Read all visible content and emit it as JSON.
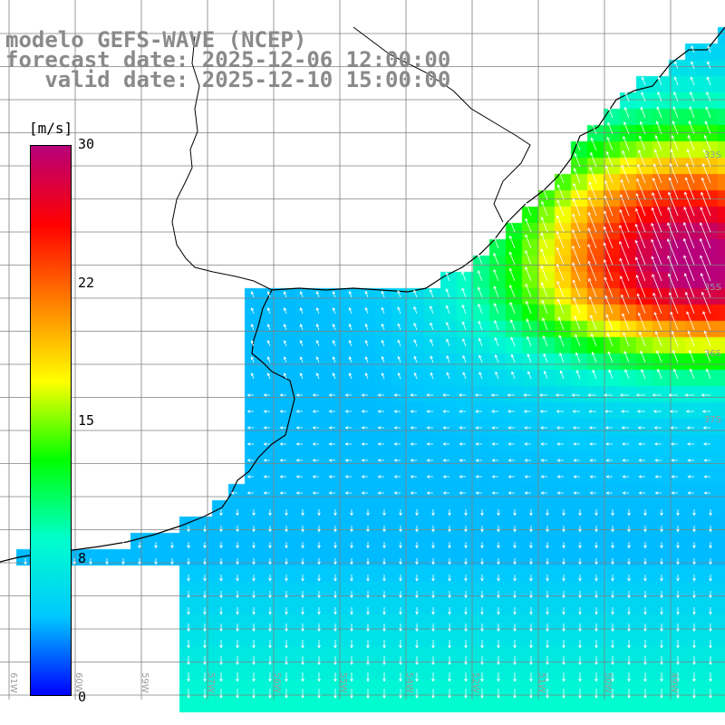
{
  "header": {
    "line1": "modelo GEFS-WAVE (NCEP)",
    "line2": "forecast date: 2025-12-06 12:00:00",
    "line3": "   valid date: 2025-12-10 15:00:00"
  },
  "colorbar": {
    "units": "[m/s]",
    "ticks": [
      {
        "label": "30",
        "value": 30
      },
      {
        "label": "22",
        "value": 22
      },
      {
        "label": "15",
        "value": 15
      },
      {
        "label": "8",
        "value": 8
      },
      {
        "label": "0",
        "value": 0
      }
    ],
    "colors": [
      "#0000ff",
      "#00c8ff",
      "#00ffcc",
      "#00ff00",
      "#ffff00",
      "#ff8000",
      "#ff0000",
      "#b8007a"
    ]
  },
  "map": {
    "variable": "wind speed",
    "lat_labels": [
      "33S",
      "35S",
      "36S",
      "37S"
    ],
    "lon_labels": [
      "61W",
      "60W",
      "59W",
      "57W",
      "56W",
      "55W",
      "54W",
      "52W",
      "51W",
      "50W",
      "49W"
    ],
    "land_color": "#ffffff",
    "grid_color": "#808080",
    "coast_color": "#000000"
  }
}
